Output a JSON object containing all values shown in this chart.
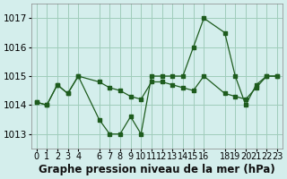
{
  "title": "Graphe pression niveau de la mer (hPa)",
  "bg_color": "#d4eeec",
  "grid_color": "#a0ccbb",
  "line_color": "#1e5c1e",
  "ylim": [
    1012.5,
    1017.5
  ],
  "xlim": [
    -0.5,
    23.5
  ],
  "yticks": [
    1013,
    1014,
    1015,
    1016,
    1017
  ],
  "xticks": [
    0,
    1,
    2,
    3,
    4,
    6,
    7,
    8,
    9,
    10,
    11,
    12,
    13,
    14,
    15,
    16,
    18,
    19,
    20,
    21,
    22,
    23
  ],
  "xtick_labels": [
    "0",
    "1",
    "2",
    "3",
    "4",
    "6",
    "7",
    "8",
    "9",
    "10",
    "11",
    "12",
    "13",
    "14",
    "15",
    "16",
    "18",
    "19",
    "20",
    "21",
    "22",
    "23"
  ],
  "series1_hours": [
    0,
    1,
    2,
    3,
    4,
    6,
    7,
    8,
    9,
    10,
    11,
    12,
    13,
    14,
    15,
    16,
    18,
    19,
    20,
    21,
    22,
    23
  ],
  "series1_pressure": [
    1014.1,
    1014.0,
    1014.7,
    1014.4,
    1015.0,
    1014.8,
    1014.6,
    1014.5,
    1014.3,
    1014.2,
    1014.8,
    1014.8,
    1014.7,
    1014.6,
    1014.5,
    1015.0,
    1014.4,
    1014.3,
    1014.2,
    1014.6,
    1015.0,
    1015.0
  ],
  "series2_hours": [
    0,
    1,
    2,
    3,
    4,
    6,
    7,
    8,
    9,
    10,
    11,
    12,
    13,
    14,
    15,
    16,
    18,
    19,
    20,
    21,
    22,
    23
  ],
  "series2_pressure": [
    1014.1,
    1014.0,
    1014.7,
    1014.4,
    1015.0,
    1013.5,
    1013.0,
    1013.0,
    1013.6,
    1013.0,
    1015.0,
    1015.0,
    1015.0,
    1015.0,
    1016.0,
    1017.0,
    1016.5,
    1015.0,
    1014.0,
    1014.7,
    1015.0,
    1015.0
  ],
  "title_fontsize": 8.5,
  "tick_fontsize": 7.5
}
